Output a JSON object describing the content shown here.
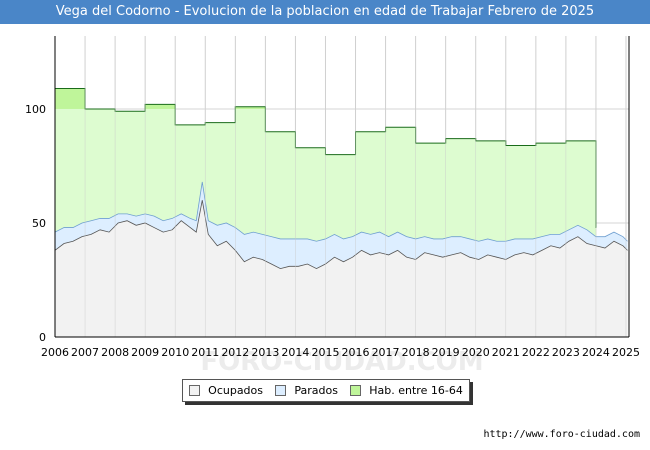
{
  "header": {
    "title": "Vega del Codorno - Evolucion de la poblacion en edad de Trabajar Febrero de 2025"
  },
  "footer": {
    "url": "http://www.foro-ciudad.com"
  },
  "watermark": "FORO-CIUDAD.COM",
  "colors": {
    "title_bg": "#4a86c8",
    "ocupados_fill": "#f2f2f2",
    "ocupados_line": "#555555",
    "parados_fill": "#ddeeff",
    "parados_line": "#6f9fd0",
    "hab_fill": "#ddfcd0",
    "hab_fill_dark": "#bff59a",
    "hab_line": "#1a6b1a"
  },
  "chart_data": {
    "type": "area",
    "x_ticks": [
      "2006",
      "2007",
      "2008",
      "2009",
      "2010",
      "2011",
      "2012",
      "2013",
      "2014",
      "2015",
      "2016",
      "2017",
      "2018",
      "2019",
      "2020",
      "2021",
      "2022",
      "2023",
      "2024",
      "2025"
    ],
    "y_ticks": [
      "0",
      "50",
      "100"
    ],
    "xlim": [
      2006.0,
      2025.1
    ],
    "ylim": [
      0,
      132
    ],
    "grid": true,
    "legend_position": "bottom",
    "series": [
      {
        "name": "Ocupados",
        "x": [
          2006.0,
          2006.3,
          2006.6,
          2006.9,
          2007.2,
          2007.5,
          2007.8,
          2008.1,
          2008.4,
          2008.7,
          2009.0,
          2009.3,
          2009.6,
          2009.9,
          2010.2,
          2010.5,
          2010.7,
          2010.9,
          2011.1,
          2011.4,
          2011.7,
          2012.0,
          2012.3,
          2012.6,
          2012.9,
          2013.2,
          2013.5,
          2013.8,
          2014.1,
          2014.4,
          2014.7,
          2015.0,
          2015.3,
          2015.6,
          2015.9,
          2016.2,
          2016.5,
          2016.8,
          2017.1,
          2017.4,
          2017.7,
          2018.0,
          2018.3,
          2018.6,
          2018.9,
          2019.2,
          2019.5,
          2019.8,
          2020.1,
          2020.4,
          2020.7,
          2021.0,
          2021.3,
          2021.6,
          2021.9,
          2022.2,
          2022.5,
          2022.8,
          2023.1,
          2023.4,
          2023.7,
          2024.0,
          2024.3,
          2024.6,
          2024.9,
          2025.05
        ],
        "values": [
          38,
          41,
          42,
          44,
          45,
          47,
          46,
          50,
          51,
          49,
          50,
          48,
          46,
          47,
          51,
          48,
          46,
          60,
          45,
          40,
          42,
          38,
          33,
          35,
          34,
          32,
          30,
          31,
          31,
          32,
          30,
          32,
          35,
          33,
          35,
          38,
          36,
          37,
          36,
          38,
          35,
          34,
          37,
          36,
          35,
          36,
          37,
          35,
          34,
          36,
          35,
          34,
          36,
          37,
          36,
          38,
          40,
          39,
          42,
          44,
          41,
          40,
          39,
          42,
          40,
          38
        ]
      },
      {
        "name": "Parados",
        "x": [
          2006.0,
          2006.3,
          2006.6,
          2006.9,
          2007.2,
          2007.5,
          2007.8,
          2008.1,
          2008.4,
          2008.7,
          2009.0,
          2009.3,
          2009.6,
          2009.9,
          2010.2,
          2010.5,
          2010.7,
          2010.9,
          2011.1,
          2011.4,
          2011.7,
          2012.0,
          2012.3,
          2012.6,
          2012.9,
          2013.2,
          2013.5,
          2013.8,
          2014.1,
          2014.4,
          2014.7,
          2015.0,
          2015.3,
          2015.6,
          2015.9,
          2016.2,
          2016.5,
          2016.8,
          2017.1,
          2017.4,
          2017.7,
          2018.0,
          2018.3,
          2018.6,
          2018.9,
          2019.2,
          2019.5,
          2019.8,
          2020.1,
          2020.4,
          2020.7,
          2021.0,
          2021.3,
          2021.6,
          2021.9,
          2022.2,
          2022.5,
          2022.8,
          2023.1,
          2023.4,
          2023.7,
          2024.0,
          2024.3,
          2024.6,
          2024.9,
          2025.05
        ],
        "values": [
          8,
          7,
          6,
          6,
          6,
          5,
          6,
          4,
          3,
          4,
          4,
          5,
          5,
          5,
          3,
          4,
          5,
          8,
          6,
          9,
          8,
          10,
          12,
          11,
          11,
          12,
          13,
          12,
          12,
          11,
          12,
          11,
          10,
          10,
          9,
          8,
          9,
          9,
          8,
          8,
          9,
          9,
          7,
          7,
          8,
          8,
          7,
          8,
          8,
          7,
          7,
          8,
          7,
          6,
          7,
          6,
          5,
          6,
          5,
          5,
          6,
          4,
          5,
          4,
          4,
          4
        ]
      },
      {
        "name": "Hab. entre 16-64",
        "x": [
          2006.0,
          2007.0,
          2008.0,
          2009.0,
          2010.0,
          2011.0,
          2012.0,
          2013.0,
          2014.0,
          2015.0,
          2016.0,
          2017.0,
          2018.0,
          2019.0,
          2020.0,
          2021.0,
          2022.0,
          2023.0,
          2024.0
        ],
        "values": [
          109,
          100,
          99,
          102,
          93,
          94,
          101,
          90,
          83,
          80,
          90,
          92,
          85,
          87,
          86,
          84,
          85,
          86,
          48
        ]
      }
    ]
  }
}
